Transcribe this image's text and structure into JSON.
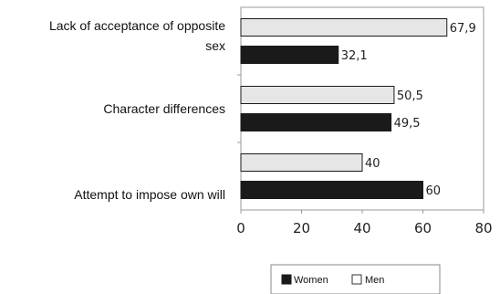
{
  "chart_data": {
    "type": "bar",
    "orientation": "horizontal",
    "categories": [
      [
        "Lack of acceptance of opposite",
        "sex"
      ],
      [
        "Character differences"
      ],
      [
        "Attempt to impose own will"
      ]
    ],
    "series": [
      {
        "name": "Men",
        "values": [
          67.9,
          50.5,
          40
        ],
        "labels": [
          "67,9",
          "50,5",
          "40"
        ],
        "color": "#e6e6e6"
      },
      {
        "name": "Women",
        "values": [
          32.1,
          49.5,
          60
        ],
        "labels": [
          "32,1",
          "49,5",
          "60"
        ],
        "color": "#1a1a1a"
      }
    ],
    "xlim": [
      0,
      80
    ],
    "xticks": [
      0,
      20,
      40,
      60,
      80
    ],
    "grid": false,
    "legend": {
      "placement": "bottom",
      "entries": [
        "Women",
        "Men"
      ]
    }
  }
}
